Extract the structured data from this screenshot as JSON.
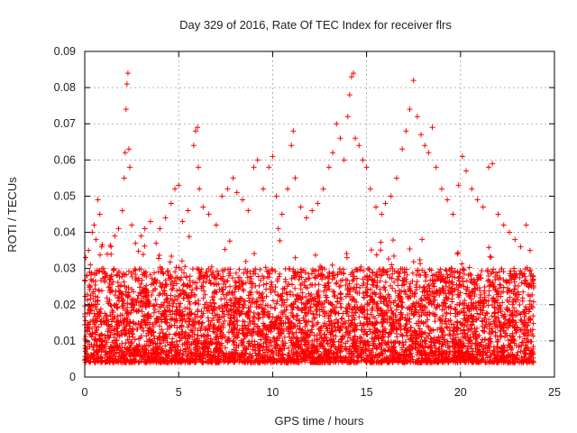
{
  "chart_data": {
    "type": "scatter",
    "title": "Day 329 of 2016, Rate Of TEC Index for receiver flrs",
    "xlabel": "GPS time / hours",
    "ylabel": "ROTI / TECUs",
    "xlim": [
      0,
      25
    ],
    "ylim": [
      0,
      0.09
    ],
    "xticks": [
      0,
      5,
      10,
      15,
      20,
      25
    ],
    "yticks": [
      0,
      0.01,
      0.02,
      0.03,
      0.04,
      0.05,
      0.06,
      0.07,
      0.08,
      0.09
    ],
    "xtick_labels": [
      "0",
      "5",
      "10",
      "15",
      "20",
      "25"
    ],
    "ytick_labels": [
      "0",
      "0.01",
      "0.02",
      "0.03",
      "0.04",
      "0.05",
      "0.06",
      "0.07",
      "0.08",
      "0.09"
    ],
    "grid": true,
    "marker": "plus",
    "color": "#ff0000",
    "x_range_of_data": [
      0,
      23.9
    ],
    "points": [
      [
        0.05,
        0.033
      ],
      [
        0.1,
        0.028
      ],
      [
        0.2,
        0.035
      ],
      [
        0.3,
        0.031
      ],
      [
        0.4,
        0.04
      ],
      [
        0.5,
        0.042
      ],
      [
        0.6,
        0.038
      ],
      [
        0.7,
        0.049
      ],
      [
        0.8,
        0.045
      ],
      [
        0.9,
        0.036
      ],
      [
        1.0,
        0.03
      ],
      [
        1.2,
        0.034
      ],
      [
        1.4,
        0.036
      ],
      [
        1.6,
        0.039
      ],
      [
        1.8,
        0.041
      ],
      [
        2.0,
        0.046
      ],
      [
        2.1,
        0.055
      ],
      [
        2.15,
        0.062
      ],
      [
        2.2,
        0.074
      ],
      [
        2.25,
        0.081
      ],
      [
        2.3,
        0.084
      ],
      [
        2.35,
        0.063
      ],
      [
        2.4,
        0.058
      ],
      [
        2.5,
        0.042
      ],
      [
        2.7,
        0.037
      ],
      [
        3.0,
        0.039
      ],
      [
        3.2,
        0.041
      ],
      [
        3.5,
        0.043
      ],
      [
        3.8,
        0.037
      ],
      [
        4.0,
        0.041
      ],
      [
        4.3,
        0.044
      ],
      [
        4.6,
        0.048
      ],
      [
        4.8,
        0.052
      ],
      [
        5.0,
        0.053
      ],
      [
        5.2,
        0.043
      ],
      [
        5.5,
        0.046
      ],
      [
        5.8,
        0.064
      ],
      [
        5.9,
        0.068
      ],
      [
        6.0,
        0.069
      ],
      [
        6.05,
        0.058
      ],
      [
        6.1,
        0.052
      ],
      [
        6.3,
        0.047
      ],
      [
        6.6,
        0.045
      ],
      [
        7.0,
        0.042
      ],
      [
        7.3,
        0.05
      ],
      [
        7.6,
        0.052
      ],
      [
        7.9,
        0.055
      ],
      [
        8.1,
        0.051
      ],
      [
        8.4,
        0.049
      ],
      [
        8.7,
        0.046
      ],
      [
        9.0,
        0.058
      ],
      [
        9.2,
        0.06
      ],
      [
        9.5,
        0.052
      ],
      [
        9.8,
        0.058
      ],
      [
        10.0,
        0.061
      ],
      [
        10.2,
        0.05
      ],
      [
        10.5,
        0.045
      ],
      [
        10.8,
        0.052
      ],
      [
        11.0,
        0.064
      ],
      [
        11.1,
        0.068
      ],
      [
        11.2,
        0.055
      ],
      [
        11.5,
        0.047
      ],
      [
        11.8,
        0.044
      ],
      [
        12.1,
        0.046
      ],
      [
        12.4,
        0.048
      ],
      [
        12.7,
        0.052
      ],
      [
        13.0,
        0.058
      ],
      [
        13.2,
        0.062
      ],
      [
        13.4,
        0.07
      ],
      [
        13.6,
        0.066
      ],
      [
        13.8,
        0.06
      ],
      [
        14.0,
        0.072
      ],
      [
        14.1,
        0.078
      ],
      [
        14.2,
        0.083
      ],
      [
        14.3,
        0.084
      ],
      [
        14.4,
        0.066
      ],
      [
        14.6,
        0.064
      ],
      [
        14.8,
        0.06
      ],
      [
        15.0,
        0.058
      ],
      [
        15.2,
        0.052
      ],
      [
        15.5,
        0.047
      ],
      [
        15.8,
        0.045
      ],
      [
        16.0,
        0.048
      ],
      [
        16.3,
        0.05
      ],
      [
        16.6,
        0.055
      ],
      [
        16.9,
        0.063
      ],
      [
        17.1,
        0.068
      ],
      [
        17.3,
        0.074
      ],
      [
        17.5,
        0.082
      ],
      [
        17.7,
        0.072
      ],
      [
        17.9,
        0.067
      ],
      [
        18.1,
        0.064
      ],
      [
        18.3,
        0.062
      ],
      [
        18.5,
        0.069
      ],
      [
        18.7,
        0.058
      ],
      [
        19.0,
        0.052
      ],
      [
        19.3,
        0.049
      ],
      [
        19.6,
        0.045
      ],
      [
        19.9,
        0.053
      ],
      [
        20.1,
        0.061
      ],
      [
        20.3,
        0.057
      ],
      [
        20.6,
        0.052
      ],
      [
        20.9,
        0.049
      ],
      [
        21.2,
        0.047
      ],
      [
        21.5,
        0.058
      ],
      [
        21.7,
        0.059
      ],
      [
        22.0,
        0.045
      ],
      [
        22.3,
        0.042
      ],
      [
        22.6,
        0.04
      ],
      [
        22.9,
        0.038
      ],
      [
        23.2,
        0.036
      ],
      [
        23.5,
        0.042
      ],
      [
        23.7,
        0.035
      ],
      [
        23.85,
        0.028
      ]
    ]
  }
}
